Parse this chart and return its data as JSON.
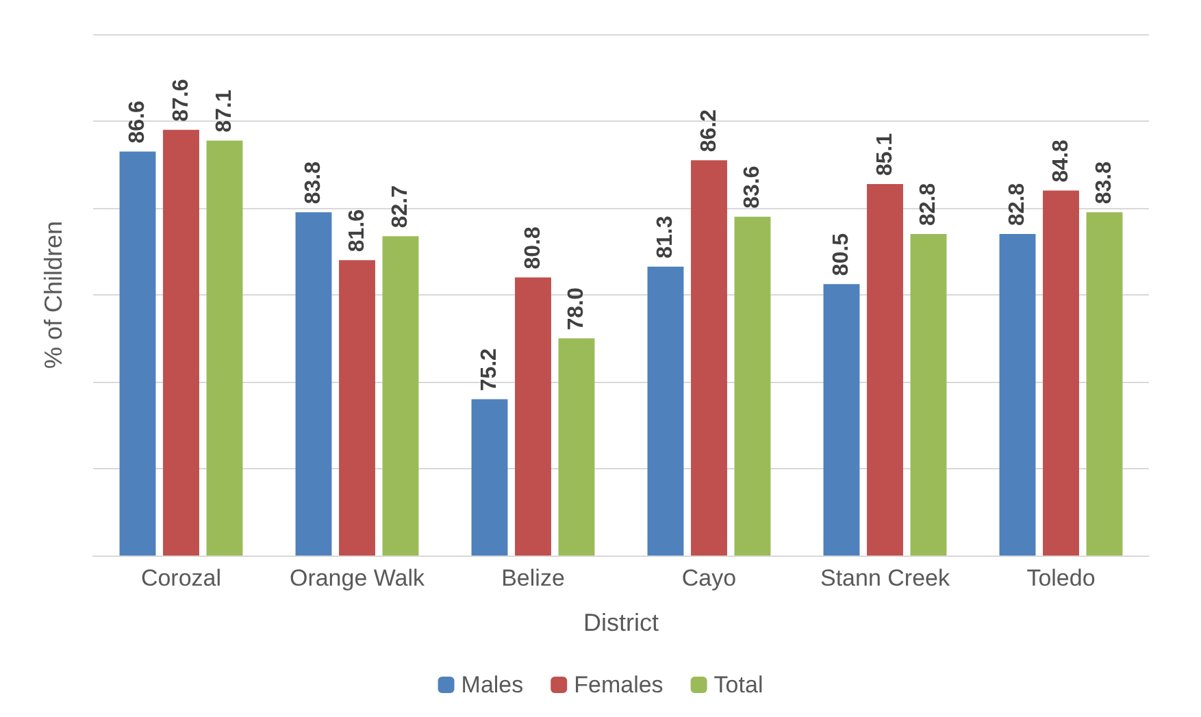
{
  "chart_data": {
    "type": "bar",
    "xlabel": "District",
    "ylabel": "% of Children",
    "categories": [
      "Corozal",
      "Orange Walk",
      "Belize",
      "Cayo",
      "Stann Creek",
      "Toledo"
    ],
    "series": [
      {
        "name": "Males",
        "color": "#4f81bd",
        "values": [
          86.6,
          83.8,
          75.2,
          81.3,
          80.5,
          82.8
        ],
        "value_labels": [
          "86.6",
          "83.8",
          "75.2",
          "81.3",
          "80.5",
          "82.8"
        ]
      },
      {
        "name": "Females",
        "color": "#c0504d",
        "values": [
          87.6,
          81.6,
          80.8,
          86.2,
          85.1,
          84.8
        ],
        "value_labels": [
          "87.6",
          "81.6",
          "80.8",
          "86.2",
          "85.1",
          "84.8"
        ]
      },
      {
        "name": "Total",
        "color": "#9bbb59",
        "values": [
          87.1,
          82.7,
          78.0,
          83.6,
          82.8,
          83.8
        ],
        "value_labels": [
          "87.1",
          "82.7",
          "78.0",
          "83.6",
          "82.8",
          "83.8"
        ]
      }
    ],
    "ylim": [
      68,
      92
    ],
    "yticks": [
      {
        "value": 68,
        "label": null
      },
      {
        "value": 72,
        "label": null
      },
      {
        "value": 76,
        "label": null
      },
      {
        "value": 80,
        "label": null
      },
      {
        "value": 84,
        "label": null
      },
      {
        "value": 88,
        "label": null
      },
      {
        "value": 92,
        "label": null
      }
    ],
    "grid": "y",
    "legend": "bottom"
  }
}
